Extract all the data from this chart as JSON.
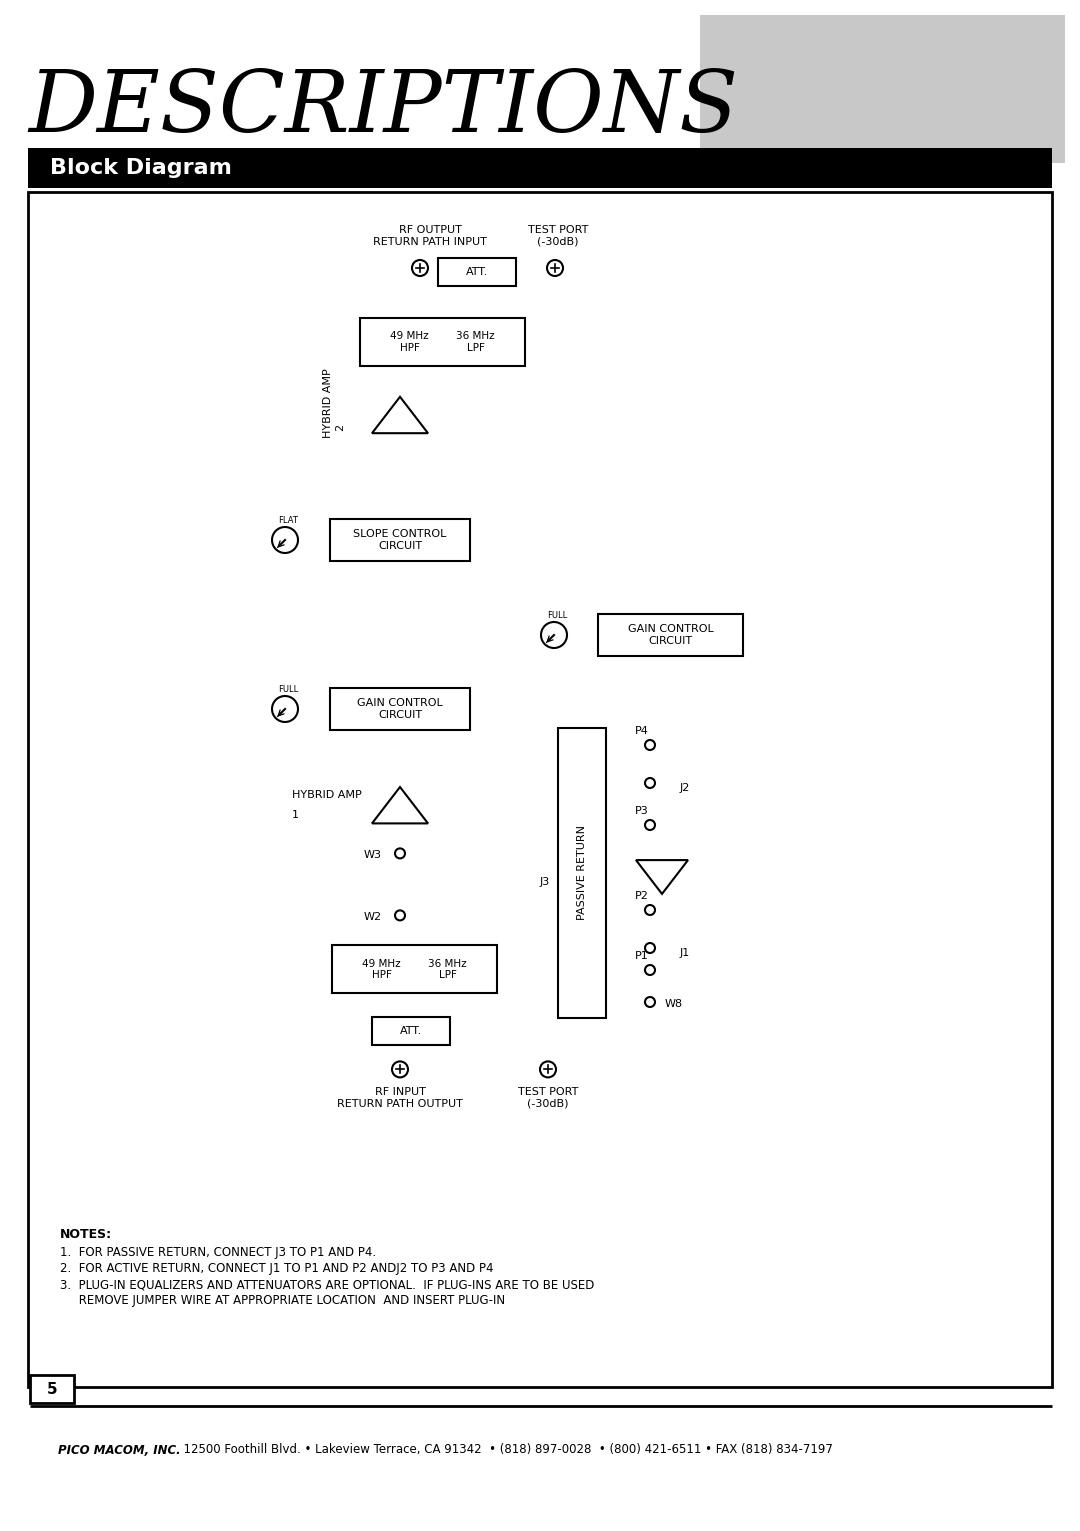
{
  "title": "DESCRIPTIONS",
  "section_title": "Block Diagram",
  "notes_header": "NOTES:",
  "note1": "1.  FOR PASSIVE RETURN, CONNECT J3 TO P1 AND P4.",
  "note2": "2.  FOR ACTIVE RETURN, CONNECT J1 TO P1 AND P2 ANDJ2 TO P3 AND P4",
  "note3": "3.  PLUG-IN EQUALIZERS AND ATTENUATORS ARE OPTIONAL.  IF PLUG-INS ARE TO BE USED",
  "note4": "     REMOVE JUMPER WIRE AT APPROPRIATE LOCATION  AND INSERT PLUG-IN",
  "footer_bold": "PICO MACOM, INC.",
  "footer_rest": "  12500 Foothill Blvd. • Lakeview Terrace, CA 91342  • (818) 897-0028  • (800) 421-6511 • FAX (818) 834-7197",
  "page_number": "5",
  "bg": "#ffffff",
  "gray": "#c8c8c8",
  "black": "#000000",
  "lw": 1.5
}
